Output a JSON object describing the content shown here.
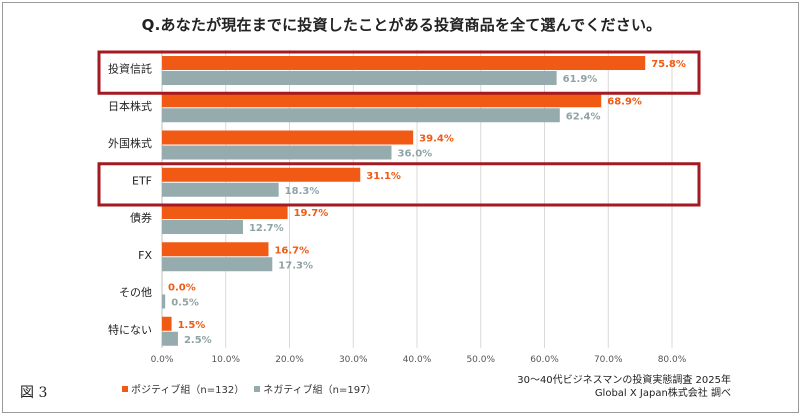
{
  "title": "Q.あなたが現在までに投資したことがある投資商品を全て選んでください。",
  "figure_label": "図 3",
  "legend": {
    "positive": "ポジティブ組（n=132）",
    "negative": "ネガティブ組（n=197）"
  },
  "source": {
    "line1": "30～40代ビジネスマンの投資実態調査 2025年",
    "line2": "Global X Japan株式会社 調べ"
  },
  "colors": {
    "positive": "#f05a14",
    "negative": "#96abad",
    "highlight": "#a31a22",
    "grid": "#d9d9d9"
  },
  "chart_data": {
    "type": "bar",
    "orientation": "horizontal",
    "title": "Q.あなたが現在までに投資したことがある投資商品を全て選んでください。",
    "categories": [
      "投資信託",
      "日本株式",
      "外国株式",
      "ETF",
      "債券",
      "FX",
      "その他",
      "特にない"
    ],
    "series": [
      {
        "name": "ポジティブ組（n=132）",
        "values": [
          75.8,
          68.9,
          39.4,
          31.1,
          19.7,
          16.7,
          0.0,
          1.5
        ],
        "labels": [
          "75.8%",
          "68.9%",
          "39.4%",
          "31.1%",
          "19.7%",
          "16.7%",
          "0.0%",
          "1.5%"
        ]
      },
      {
        "name": "ネガティブ組（n=197）",
        "values": [
          61.9,
          62.4,
          36.0,
          18.3,
          12.7,
          17.3,
          0.5,
          2.5
        ],
        "labels": [
          "61.9%",
          "62.4%",
          "36.0%",
          "18.3%",
          "12.7%",
          "17.3%",
          "0.5%",
          "2.5%"
        ]
      }
    ],
    "xlim": [
      0,
      80
    ],
    "xticks": [
      "0.0%",
      "10.0%",
      "20.0%",
      "30.0%",
      "40.0%",
      "50.0%",
      "60.0%",
      "70.0%",
      "80.0%"
    ],
    "highlighted_categories": [
      "投資信託",
      "ETF"
    ],
    "grid": true,
    "legend_position": "bottom-left"
  }
}
